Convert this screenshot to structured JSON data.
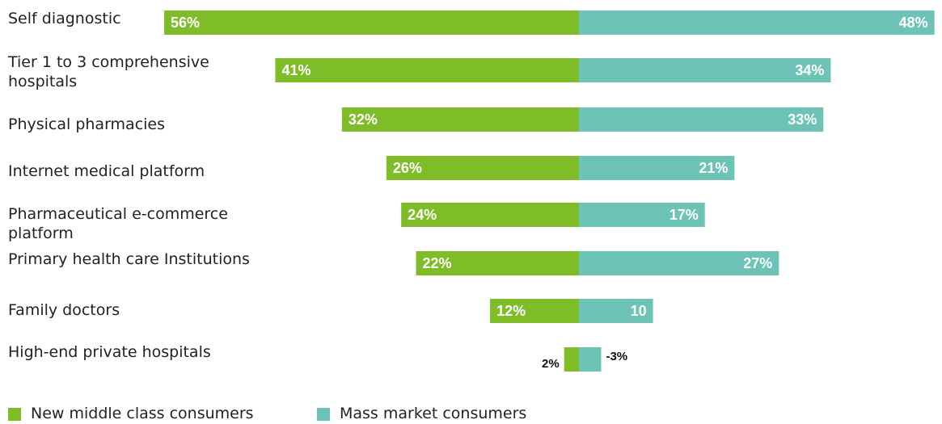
{
  "chart_data": {
    "type": "butterfly-bar",
    "categories": [
      "Self diagnostic",
      "Tier 1 to 3 comprehensive hospitals",
      "Physical pharmacies",
      "Internet medical platform",
      "Pharmaceutical e-commerce platform",
      "Primary health care Institutions",
      "Family doctors",
      "High-end private hospitals"
    ],
    "series": [
      {
        "name": "New middle class consumers",
        "color": "#7ebd28",
        "values": [
          56,
          41,
          32,
          26,
          24,
          22,
          12,
          2
        ],
        "value_labels": [
          "56%",
          "41%",
          "32%",
          "26%",
          "24%",
          "22%",
          "12%",
          "2%"
        ]
      },
      {
        "name": "Mass market consumers",
        "color": "#6cc3b6",
        "values": [
          48,
          34,
          33,
          21,
          17,
          27,
          10,
          -3
        ],
        "value_labels": [
          "48%",
          "34%",
          "33%",
          "21%",
          "17%",
          "27%",
          "10",
          "-3%"
        ]
      }
    ]
  }
}
